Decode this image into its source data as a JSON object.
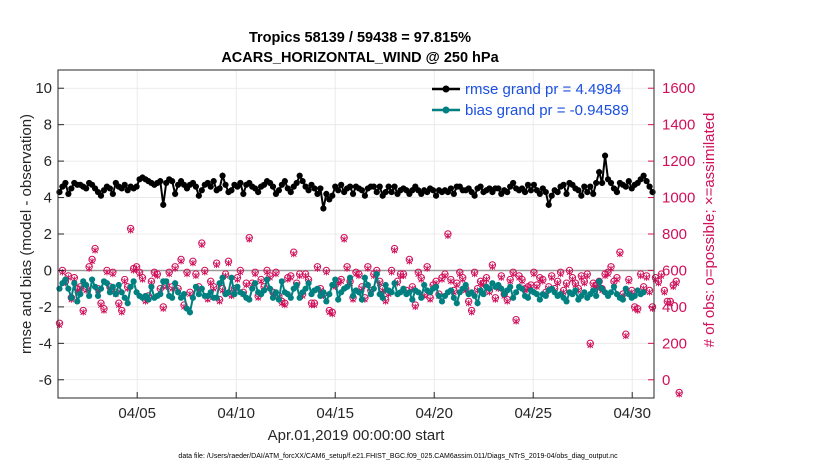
{
  "chart_data": {
    "type": "line",
    "title_line1": "Tropics 58139 / 59438 = 97.815%",
    "title_line2": "ACARS_HORIZONTAL_WIND @ 250 hPa",
    "ylabel_left": "rmse and bias (model - observation)",
    "ylabel_right": "# of obs: o=possible; ×=assimilated",
    "xlabel": "Apr.01,2019 00:00:00 start",
    "footer": "data file: /Users/raeder/DAI/ATM_forcXX/CAM6_setup/f.e21.FHIST_BGC.f09_025.CAM6assim.011/Diags_NTrS_2019-04/obs_diag_output.nc",
    "x_range": [
      1,
      31.1
    ],
    "ylim_left": [
      -7,
      11
    ],
    "ylim_right": [
      -100,
      1700
    ],
    "xticks": [
      {
        "value": 5,
        "label": "04/05"
      },
      {
        "value": 10,
        "label": "04/10"
      },
      {
        "value": 15,
        "label": "04/15"
      },
      {
        "value": 20,
        "label": "04/20"
      },
      {
        "value": 25,
        "label": "04/25"
      },
      {
        "value": 30,
        "label": "04/30"
      }
    ],
    "yticks_left": [
      -6,
      -4,
      -2,
      0,
      2,
      4,
      6,
      8,
      10
    ],
    "yticks_right": [
      0,
      200,
      400,
      600,
      800,
      1000,
      1200,
      1400,
      1600
    ],
    "zero_line": 0,
    "colors": {
      "rmse": "#000000",
      "bias": "#008080",
      "obs": "#d0105a",
      "legend_text": "#1a4fe0",
      "zero_line": "#999999"
    },
    "series": [
      {
        "name": "rmse grand pr = 4.4984",
        "axis": "left",
        "values": [
          4.3,
          4.6,
          4.8,
          4.2,
          4.5,
          4.8,
          4.7,
          4.7,
          4.6,
          4.5,
          4.8,
          4.7,
          4.5,
          4.3,
          4.1,
          4.4,
          4.6,
          4.5,
          4.2,
          4.8,
          4.6,
          4.5,
          4.7,
          4.4,
          4.6,
          4.5,
          4.6,
          5.0,
          5.1,
          5.0,
          4.9,
          4.8,
          4.7,
          4.8,
          4.9,
          3.6,
          4.8,
          5.0,
          4.9,
          4.2,
          4.7,
          4.9,
          4.7,
          4.5,
          4.7,
          4.8,
          4.6,
          4.1,
          4.4,
          4.7,
          4.8,
          4.6,
          4.9,
          4.4,
          4.5,
          5.2,
          4.7,
          4.3,
          4.4,
          4.7,
          4.6,
          4.8,
          4.2,
          4.7,
          4.8,
          4.6,
          4.5,
          4.3,
          4.6,
          4.7,
          4.9,
          4.8,
          4.6,
          4.2,
          4.4,
          4.7,
          4.9,
          4.5,
          4.3,
          4.6,
          4.8,
          5.2,
          4.9,
          4.6,
          4.4,
          4.7,
          4.5,
          4.2,
          4.5,
          3.4,
          4.2,
          3.9,
          4.1,
          4.6,
          4.4,
          4.7,
          4.3,
          4.5,
          4.6,
          4.2,
          4.6,
          4.5,
          4.4,
          4.1,
          4.5,
          4.6,
          4.6,
          4.3,
          4.6,
          4.1,
          4.3,
          4.6,
          4.3,
          4.6,
          4.2,
          4.4,
          4.5,
          4.4,
          4.2,
          4.4,
          4.6,
          4.4,
          4.2,
          4.4,
          4.3,
          4.5,
          4.4,
          4.1,
          4.4,
          4.3,
          4.4,
          4.3,
          4.5,
          4.2,
          4.6,
          4.6,
          4.4,
          4.4,
          4.5,
          4.3,
          4.1,
          4.5,
          4.6,
          4.3,
          4.4,
          4.5,
          4.3,
          4.5,
          4.5,
          4.2,
          4.4,
          4.3,
          4.6,
          4.8,
          4.5,
          4.4,
          4.5,
          4.3,
          4.7,
          4.4,
          4.7,
          4.4,
          4.2,
          4.5,
          4.3,
          3.6,
          4.1,
          4.4,
          4.3,
          4.6,
          4.7,
          4.2,
          4.8,
          4.7,
          4.5,
          4.4,
          4.1,
          4.6,
          4.3,
          4.6,
          4.2,
          4.8,
          5.4,
          4.8,
          6.3,
          5.0,
          4.8,
          4.5,
          4.3,
          4.8,
          4.7,
          4.6,
          4.9,
          4.5,
          4.7,
          4.8,
          5.0,
          5.2,
          4.9,
          4.6,
          4.3
        ]
      },
      {
        "name": "bias grand pr = -0.94589",
        "axis": "left",
        "values": [
          -1.0,
          -0.7,
          -0.5,
          -1.0,
          -1.5,
          -0.7,
          -1.7,
          -1.3,
          -0.6,
          -0.8,
          -1.4,
          -0.5,
          -0.9,
          -1.4,
          -1.0,
          -0.6,
          -0.7,
          -1.2,
          -0.9,
          -1.3,
          -0.8,
          -1.2,
          -1.5,
          -1.8,
          -0.9,
          -0.6,
          -1.2,
          -1.4,
          -1.5,
          -1.4,
          -1.6,
          -0.9,
          -1.5,
          -1.4,
          -1.3,
          -0.6,
          -0.6,
          -1.4,
          -1.5,
          -0.7,
          -1.2,
          -1.5,
          -1.3,
          -2.1,
          -2.3,
          -1.5,
          -0.9,
          -1.3,
          -1.0,
          -1.4,
          -1.4,
          -1.2,
          -1.5,
          -1.5,
          -0.7,
          -0.4,
          -1.3,
          -1.2,
          -0.4,
          -1.3,
          -0.9,
          -1.2,
          -1.3,
          -1.5,
          -1.6,
          -1.0,
          -0.7,
          -1.2,
          -1.3,
          -1.1,
          -0.5,
          -1.0,
          -1.5,
          -1.2,
          -1.6,
          -0.6,
          -1.2,
          -1.3,
          -1.5,
          -1.0,
          -0.8,
          -1.5,
          -1.2,
          -1.0,
          -0.7,
          -1.3,
          -1.1,
          -1.0,
          -1.4,
          -1.2,
          -1.7,
          -1.3,
          -0.8,
          -0.5,
          -1.6,
          -1.2,
          -1.0,
          -0.9,
          -0.4,
          -1.4,
          -1.1,
          -1.2,
          -1.6,
          -0.4,
          -0.8,
          -1.3,
          -1.0,
          -0.2,
          -1.3,
          -1.5,
          -0.8,
          -1.1,
          -1.2,
          -0.7,
          -1.3,
          -1.2,
          -1.0,
          -1.3,
          -1.2,
          -1.6,
          -1.1,
          -1.2,
          -1.5,
          -0.8,
          -1.1,
          -1.2,
          -1.0,
          -0.9,
          -1.4,
          -1.7,
          -1.4,
          -1.2,
          -1.1,
          -1.5,
          -1.8,
          -1.2,
          -1.0,
          -0.8,
          -1.3,
          -1.2,
          -1.4,
          -1.8,
          -1.1,
          -1.3,
          -0.9,
          -1.0,
          -0.7,
          -0.9,
          -0.8,
          -1.0,
          -1.3,
          -1.1,
          -0.9,
          -1.5,
          -1.2,
          -0.9,
          -1.0,
          -1.4,
          -1.5,
          -1.1,
          -1.2,
          -1.3,
          -1.6,
          -1.3,
          -1.4,
          -1.1,
          -1.0,
          -1.2,
          -1.4,
          -1.3,
          -1.5,
          -1.7,
          -1.2,
          -1.3,
          -1.1,
          -1.6,
          -1.4,
          -1.2,
          -1.5,
          -1.3,
          -1.1,
          -1.4,
          -0.6,
          -1.0,
          -1.2,
          -1.4,
          -1.2,
          -0.9,
          -1.3,
          -1.5,
          -1.6,
          -1.0,
          -1.3,
          -1.5,
          -1.4,
          -1.1,
          -1.3,
          -1.2
        ]
      },
      {
        "name": "possible obs (o)",
        "axis": "right",
        "values": [
          310,
          600,
          540,
          570,
          450,
          560,
          500,
          510,
          380,
          500,
          620,
          660,
          720,
          500,
          420,
          390,
          600,
          510,
          590,
          480,
          420,
          380,
          550,
          510,
          830,
          610,
          620,
          590,
          560,
          440,
          460,
          540,
          590,
          580,
          500,
          400,
          520,
          590,
          510,
          620,
          500,
          660,
          410,
          590,
          480,
          650,
          580,
          510,
          750,
          600,
          450,
          540,
          510,
          640,
          440,
          500,
          580,
          650,
          470,
          500,
          560,
          600,
          480,
          530,
          780,
          530,
          590,
          460,
          550,
          510,
          600,
          570,
          480,
          590,
          460,
          430,
          420,
          560,
          570,
          700,
          530,
          580,
          470,
          580,
          550,
          420,
          420,
          620,
          500,
          470,
          600,
          380,
          370,
          520,
          540,
          550,
          780,
          620,
          540,
          450,
          590,
          580,
          510,
          450,
          620,
          490,
          580,
          600,
          540,
          500,
          440,
          480,
          600,
          720,
          540,
          580,
          580,
          490,
          660,
          510,
          410,
          590,
          560,
          470,
          620,
          450,
          520,
          540,
          470,
          560,
          580,
          800,
          550,
          490,
          530,
          590,
          560,
          500,
          430,
          380,
          590,
          500,
          540,
          530,
          560,
          490,
          630,
          450,
          510,
          570,
          470,
          440,
          550,
          590,
          330,
          570,
          550,
          500,
          510,
          520,
          590,
          520,
          560,
          550,
          480,
          510,
          570,
          500,
          540,
          590,
          490,
          530,
          600,
          560,
          530,
          500,
          570,
          540,
          580,
          200,
          530,
          520,
          540,
          500,
          580,
          590,
          620,
          540,
          560,
          700,
          470,
          250,
          550,
          490,
          400,
          390,
          580,
          510,
          570,
          490,
          400,
          560,
          540,
          580,
          490,
          430,
          430,
          520,
          540,
          -70
        ]
      },
      {
        "name": "assimilated obs (×)",
        "axis": "right",
        "values": [
          300,
          590,
          530,
          560,
          440,
          550,
          490,
          500,
          370,
          490,
          610,
          650,
          710,
          490,
          410,
          380,
          590,
          500,
          580,
          470,
          410,
          370,
          540,
          500,
          820,
          600,
          610,
          580,
          550,
          430,
          450,
          530,
          580,
          570,
          490,
          390,
          510,
          580,
          500,
          610,
          490,
          650,
          400,
          580,
          470,
          640,
          570,
          500,
          740,
          590,
          440,
          530,
          500,
          630,
          430,
          490,
          570,
          640,
          460,
          490,
          550,
          590,
          470,
          520,
          770,
          520,
          580,
          450,
          540,
          500,
          590,
          560,
          470,
          580,
          450,
          420,
          410,
          550,
          560,
          690,
          520,
          570,
          460,
          570,
          540,
          410,
          410,
          610,
          490,
          460,
          590,
          370,
          360,
          510,
          530,
          540,
          770,
          610,
          530,
          440,
          580,
          570,
          500,
          440,
          610,
          480,
          570,
          590,
          530,
          490,
          430,
          470,
          590,
          710,
          530,
          570,
          570,
          480,
          650,
          500,
          400,
          580,
          550,
          460,
          610,
          440,
          510,
          530,
          460,
          550,
          570,
          790,
          540,
          480,
          520,
          580,
          550,
          490,
          420,
          370,
          580,
          490,
          530,
          520,
          550,
          480,
          620,
          440,
          500,
          560,
          460,
          430,
          540,
          580,
          320,
          560,
          540,
          490,
          500,
          510,
          580,
          510,
          550,
          540,
          470,
          500,
          560,
          490,
          530,
          580,
          480,
          520,
          590,
          550,
          520,
          490,
          560,
          530,
          570,
          190,
          520,
          510,
          530,
          490,
          570,
          580,
          610,
          530,
          550,
          690,
          460,
          240,
          540,
          480,
          390,
          380,
          570,
          500,
          560,
          480,
          390,
          550,
          530,
          570,
          480,
          420,
          420,
          510,
          530,
          -80
        ]
      }
    ]
  }
}
